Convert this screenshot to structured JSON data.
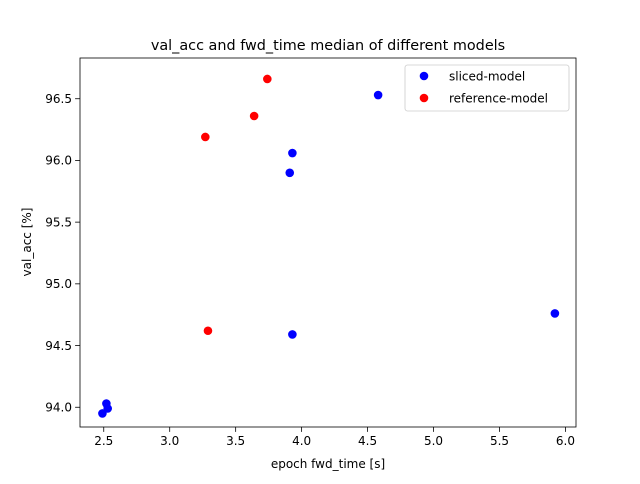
{
  "chart_data": {
    "type": "scatter",
    "title": "val_acc and fwd_time median of different models",
    "xlabel": "epoch fwd_time [s]",
    "ylabel": "val_acc [%]",
    "xlim": [
      2.32,
      6.08
    ],
    "ylim": [
      93.84,
      96.83
    ],
    "xticks": [
      2.5,
      3.0,
      3.5,
      4.0,
      4.5,
      5.0,
      5.5,
      6.0
    ],
    "xtick_labels": [
      "2.5",
      "3.0",
      "3.5",
      "4.0",
      "4.5",
      "5.0",
      "5.5",
      "6.0"
    ],
    "yticks": [
      94.0,
      94.5,
      95.0,
      95.5,
      96.0,
      96.5
    ],
    "ytick_labels": [
      "94.0",
      "94.5",
      "95.0",
      "95.5",
      "96.0",
      "96.5"
    ],
    "grid": false,
    "legend_position": "upper right",
    "series": [
      {
        "name": "sliced-model",
        "color": "#0000ff",
        "points": [
          {
            "x": 4.58,
            "y": 96.53
          },
          {
            "x": 3.93,
            "y": 96.06
          },
          {
            "x": 3.91,
            "y": 95.9
          },
          {
            "x": 5.92,
            "y": 94.76
          },
          {
            "x": 3.93,
            "y": 94.59
          },
          {
            "x": 2.52,
            "y": 94.03
          },
          {
            "x": 2.53,
            "y": 93.99
          },
          {
            "x": 2.49,
            "y": 93.95
          }
        ]
      },
      {
        "name": "reference-model",
        "color": "#ff0000",
        "points": [
          {
            "x": 3.74,
            "y": 96.66
          },
          {
            "x": 3.64,
            "y": 96.36
          },
          {
            "x": 3.27,
            "y": 96.19
          },
          {
            "x": 3.29,
            "y": 94.62
          }
        ]
      }
    ]
  }
}
